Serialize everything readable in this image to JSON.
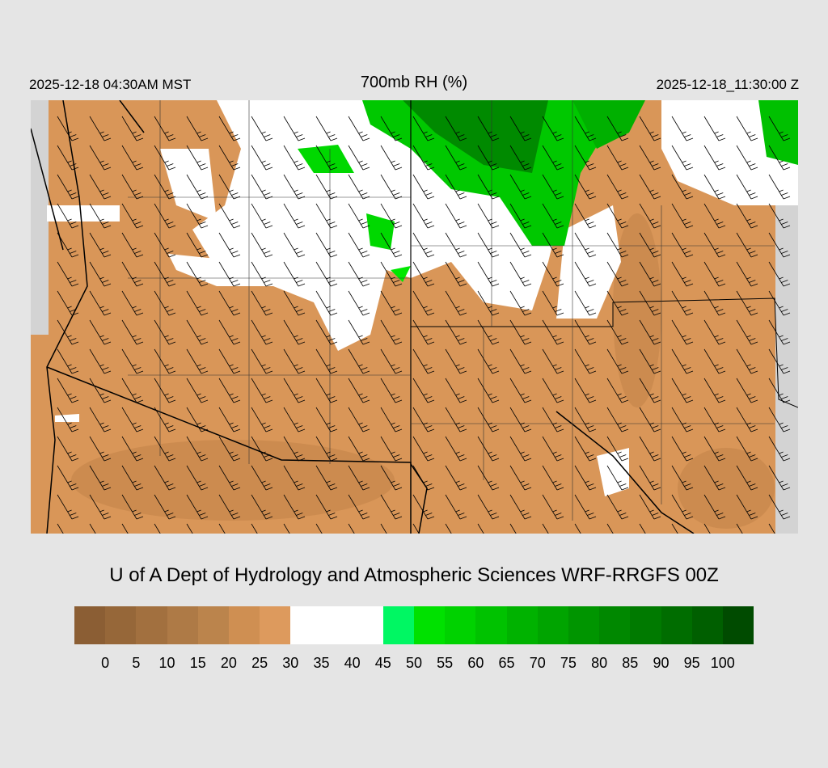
{
  "header": {
    "local_time": "2025-12-18 04:30AM MST",
    "title": "700mb RH (%)",
    "valid_time": "2025-12-18_11:30:00 Z"
  },
  "credit": "U of A Dept of Hydrology and Atmospheric Sciences WRF-RRGFS 00Z",
  "colorbar": {
    "colors": [
      "#8b5e34",
      "#966739",
      "#a2703f",
      "#ae7a46",
      "#bb844c",
      "#cf8f52",
      "#dd9a5d",
      "#ffffff",
      "#ffffff",
      "#ffffff",
      "#00f763",
      "#00e100",
      "#00d200",
      "#00c200",
      "#00b200",
      "#00a400",
      "#009500",
      "#008800",
      "#007a00",
      "#006d00",
      "#005f00",
      "#004b00"
    ],
    "labels": [
      "0",
      "5",
      "10",
      "15",
      "20",
      "25",
      "30",
      "35",
      "40",
      "45",
      "50",
      "55",
      "60",
      "65",
      "70",
      "75",
      "80",
      "85",
      "90",
      "95",
      "100"
    ]
  },
  "map": {
    "variable": "700mb relative humidity with wind barbs",
    "dominant_color": "#d99658",
    "missing_color": "#d3d3d3"
  }
}
